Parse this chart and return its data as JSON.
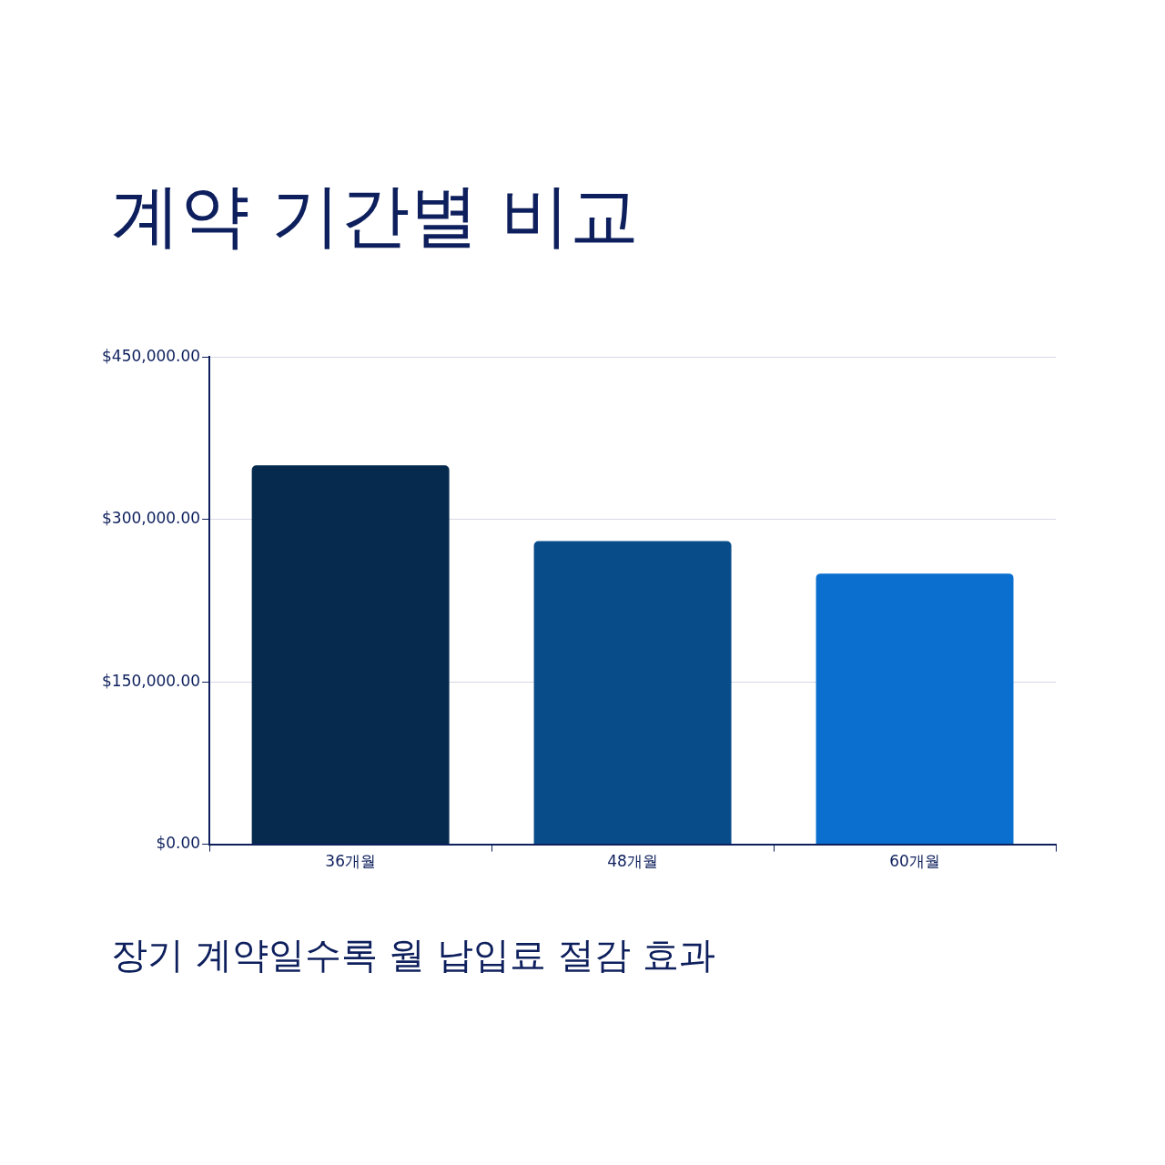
{
  "chart_data": {
    "type": "bar",
    "title": "계약 기간별 비교",
    "categories": [
      "36개월",
      "48개월",
      "60개월"
    ],
    "values": [
      350000,
      280000,
      250000
    ],
    "colors": [
      "#062a4d",
      "#084c8a",
      "#0a6fce"
    ],
    "ylim": [
      0,
      450000
    ],
    "yticks": [
      {
        "value": 0,
        "label": "$0.00"
      },
      {
        "value": 150000,
        "label": "$150,000.00"
      },
      {
        "value": 300000,
        "label": "$300,000.00"
      },
      {
        "value": 450000,
        "label": "$450,000.00"
      }
    ],
    "grid": "y",
    "legend": false,
    "annotations": [
      "장기 계약일수록 월 납입료 절감 효과"
    ]
  }
}
